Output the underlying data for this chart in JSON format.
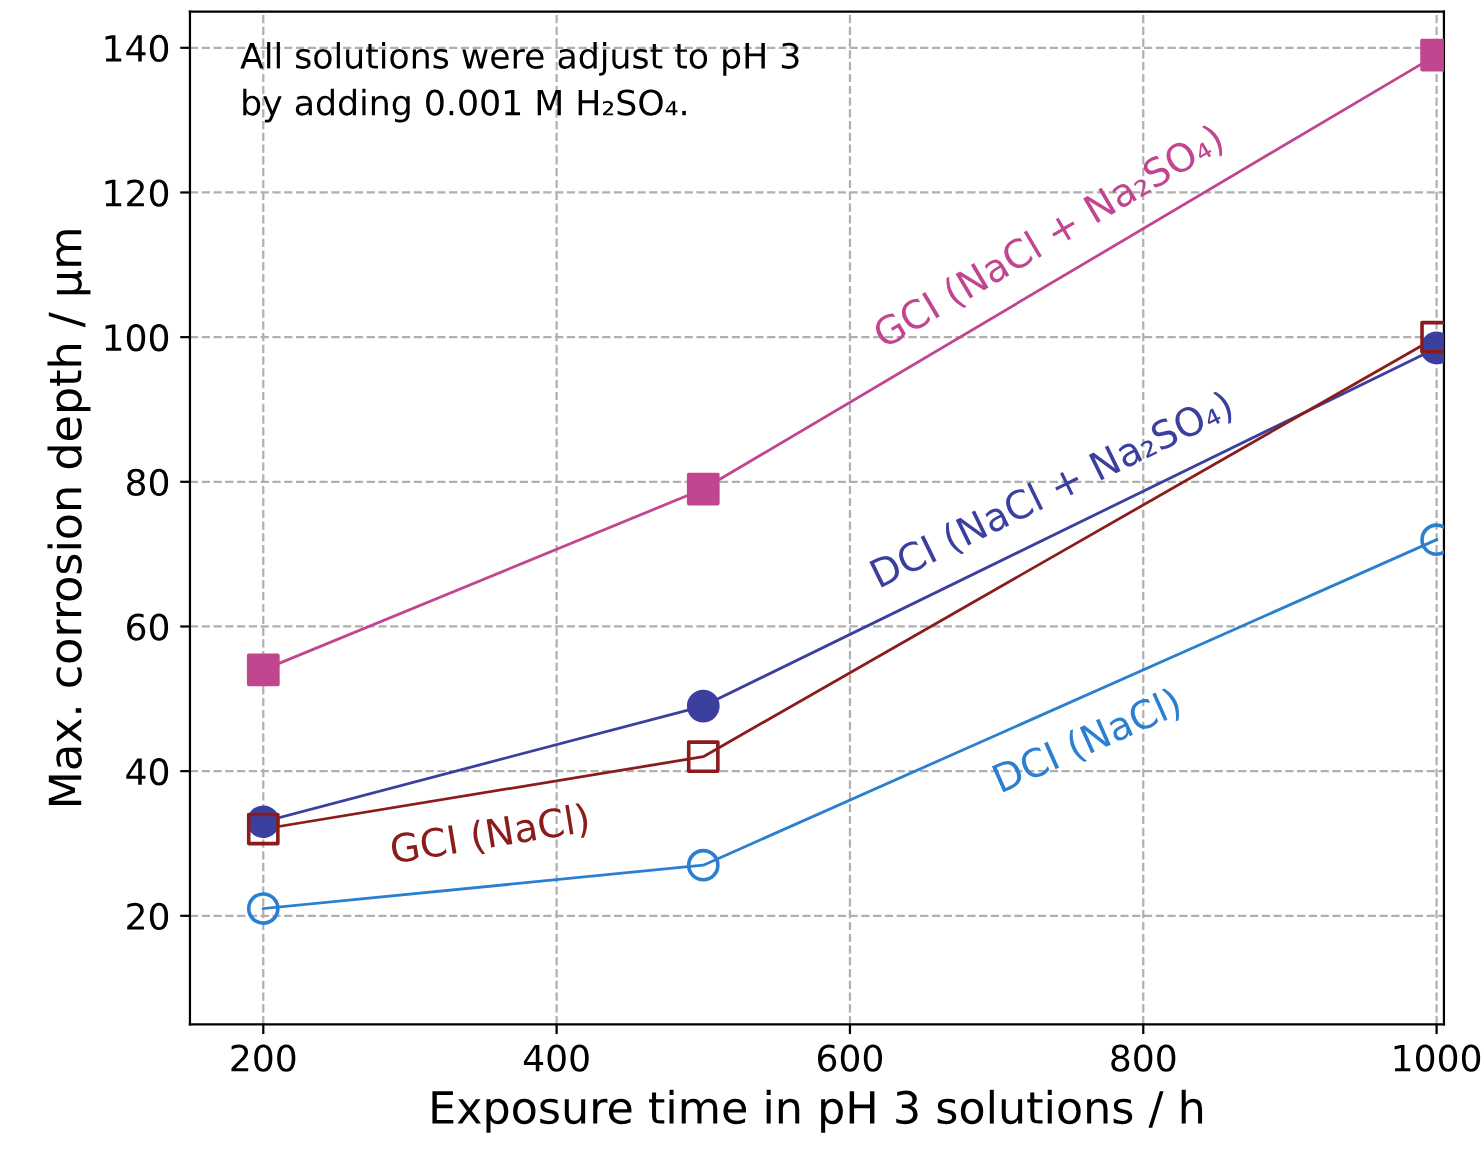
{
  "chart_data": {
    "type": "line",
    "xlabel": "Exposure time in pH 3 solutions / h",
    "ylabel": "Max. corrosion depth / µm",
    "x": [
      200,
      500,
      1000
    ],
    "series": [
      {
        "name": "GCI (NaCl + Na₂SO₄)",
        "color": "#c2458f",
        "values": [
          54,
          79,
          139
        ],
        "marker": "square"
      },
      {
        "name": "DCI (NaCl + Na₂SO₄)",
        "color": "#3b3f9e",
        "values": [
          33,
          49,
          98.5
        ],
        "marker": "circle"
      },
      {
        "name": "GCI (NaCl)",
        "color": "#8b1c1c",
        "values": [
          32,
          42,
          100
        ],
        "marker": "square"
      },
      {
        "name": "DCI (NaCl)",
        "color": "#2a7fd0",
        "values": [
          21,
          27,
          72
        ],
        "marker": "circle"
      }
    ],
    "xlim": [
      150,
      1005
    ],
    "xticks": [
      200,
      400,
      600,
      800,
      1000
    ],
    "ylim": [
      5,
      145
    ],
    "yticks": [
      20,
      40,
      60,
      80,
      100,
      120,
      140
    ],
    "grid": true,
    "legend": false,
    "line_style": "solid",
    "annotations": [
      "All solutions were adjust to pH 3\nby adding 0.001 M H₂SO₄."
    ]
  }
}
